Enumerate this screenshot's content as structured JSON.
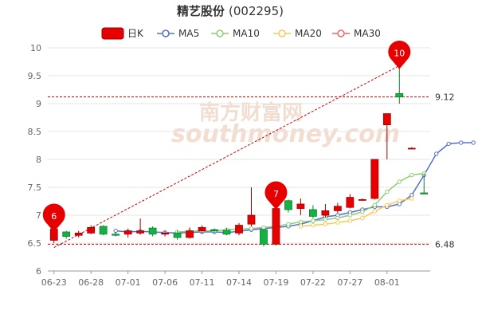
{
  "chart_data": {
    "type": "candlestick",
    "title": "精艺股份",
    "code": "(002295)",
    "legend": [
      {
        "name": "日K",
        "color": "#e60000",
        "kind": "candle"
      },
      {
        "name": "MA5",
        "color": "#5470c6",
        "kind": "line"
      },
      {
        "name": "MA10",
        "color": "#91cc75",
        "kind": "line"
      },
      {
        "name": "MA20",
        "color": "#fac858",
        "kind": "line"
      },
      {
        "name": "MA30",
        "color": "#ee6666",
        "kind": "line"
      }
    ],
    "ylim": [
      6,
      10
    ],
    "yticks": [
      "6",
      "6.5",
      "7",
      "7.5",
      "8",
      "8.5",
      "9",
      "9.5",
      "10"
    ],
    "xtick_labels": [
      "06-23",
      "06-28",
      "07-01",
      "07-06",
      "07-11",
      "07-14",
      "07-19",
      "07-22",
      "07-27",
      "08-01"
    ],
    "candles": [
      {
        "o": 6.55,
        "c": 6.75,
        "h": 6.85,
        "l": 6.5
      },
      {
        "o": 6.7,
        "c": 6.62,
        "h": 6.72,
        "l": 6.58
      },
      {
        "o": 6.64,
        "c": 6.68,
        "h": 6.72,
        "l": 6.6
      },
      {
        "o": 6.68,
        "c": 6.78,
        "h": 6.82,
        "l": 6.66
      },
      {
        "o": 6.8,
        "c": 6.66,
        "h": 6.82,
        "l": 6.64
      },
      {
        "o": 6.66,
        "c": 6.64,
        "h": 6.7,
        "l": 6.62
      },
      {
        "o": 6.66,
        "c": 6.72,
        "h": 6.76,
        "l": 6.6
      },
      {
        "o": 6.68,
        "c": 6.72,
        "h": 6.94,
        "l": 6.65
      },
      {
        "o": 6.77,
        "c": 6.66,
        "h": 6.8,
        "l": 6.62
      },
      {
        "o": 6.66,
        "c": 6.68,
        "h": 6.72,
        "l": 6.62
      },
      {
        "o": 6.68,
        "c": 6.6,
        "h": 6.72,
        "l": 6.56
      },
      {
        "o": 6.6,
        "c": 6.72,
        "h": 6.78,
        "l": 6.58
      },
      {
        "o": 6.72,
        "c": 6.78,
        "h": 6.82,
        "l": 6.68
      },
      {
        "o": 6.74,
        "c": 6.72,
        "h": 6.76,
        "l": 6.68
      },
      {
        "o": 6.73,
        "c": 6.66,
        "h": 6.77,
        "l": 6.64
      },
      {
        "o": 6.68,
        "c": 6.82,
        "h": 6.86,
        "l": 6.64
      },
      {
        "o": 6.84,
        "c": 7.0,
        "h": 7.5,
        "l": 6.8
      },
      {
        "o": 6.74,
        "c": 6.48,
        "h": 6.76,
        "l": 6.44
      },
      {
        "o": 6.48,
        "c": 7.12,
        "h": 7.12,
        "l": 6.46
      },
      {
        "o": 7.26,
        "c": 7.1,
        "h": 7.28,
        "l": 7.05
      },
      {
        "o": 7.12,
        "c": 7.2,
        "h": 7.3,
        "l": 7.0
      },
      {
        "o": 7.1,
        "c": 6.98,
        "h": 7.18,
        "l": 6.95
      },
      {
        "o": 7.0,
        "c": 7.08,
        "h": 7.2,
        "l": 6.96
      },
      {
        "o": 7.08,
        "c": 7.16,
        "h": 7.22,
        "l": 7.04
      },
      {
        "o": 7.14,
        "c": 7.32,
        "h": 7.38,
        "l": 7.12
      },
      {
        "o": 7.27,
        "c": 7.28,
        "h": 7.3,
        "l": 7.26
      },
      {
        "o": 7.3,
        "c": 8.0,
        "h": 8.0,
        "l": 7.28
      },
      {
        "o": 8.62,
        "c": 8.82,
        "h": 8.82,
        "l": 8.0
      },
      {
        "o": 9.18,
        "c": 9.12,
        "h": 9.7,
        "l": 9.0
      },
      {
        "o": 8.2,
        "c": 8.2,
        "h": 8.22,
        "l": 8.2
      },
      {
        "o": 7.4,
        "c": 7.38,
        "h": 7.75,
        "l": 7.38
      }
    ],
    "series": [
      {
        "name": "MA5",
        "color": "#5470c6",
        "start": 5,
        "values": [
          6.72,
          6.7,
          6.71,
          6.7,
          6.69,
          6.68,
          6.69,
          6.7,
          6.7,
          6.69,
          6.71,
          6.74,
          6.76,
          6.78,
          6.8,
          6.84,
          6.9,
          6.97,
          7.0,
          7.05,
          7.1,
          7.15,
          7.15,
          7.2,
          7.36,
          7.72,
          8.1,
          8.28,
          8.3,
          8.3
        ]
      },
      {
        "name": "MA10",
        "color": "#91cc75",
        "start": 10,
        "values": [
          6.7,
          6.71,
          6.72,
          6.72,
          6.74,
          6.75,
          6.76,
          6.78,
          6.8,
          6.84,
          6.88,
          6.9,
          6.92,
          6.95,
          7.0,
          7.06,
          7.18,
          7.42,
          7.6,
          7.72,
          7.75
        ]
      },
      {
        "name": "MA20",
        "color": "#fac858",
        "start": 20,
        "values": [
          6.8,
          6.82,
          6.84,
          6.87,
          6.9,
          6.95,
          7.07,
          7.18,
          7.26,
          7.3
        ]
      }
    ],
    "ref_lines": [
      {
        "value": 9.12,
        "label": "9.12"
      },
      {
        "value": 6.48,
        "label": "6.48"
      }
    ],
    "pins": [
      {
        "index": 0,
        "value": 6.7,
        "label": "6"
      },
      {
        "index": 18,
        "value": 7.1,
        "label": "7"
      },
      {
        "index": 28,
        "value": 9.62,
        "label": "10"
      }
    ],
    "trend": {
      "from_index": 0,
      "from_value": 6.42,
      "to_index": 28,
      "to_value": 9.68
    }
  },
  "watermark": {
    "brand": "南方财富网",
    "url": "southmoney.com"
  }
}
